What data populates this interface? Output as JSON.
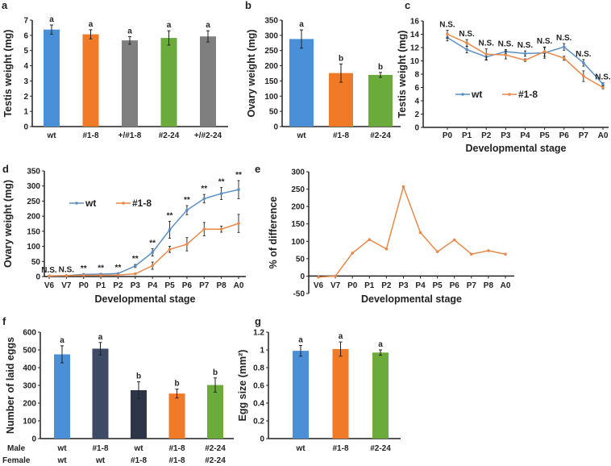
{
  "chart_data": [
    {
      "panel": "a",
      "type": "bar",
      "ylabel": "Testis weight (mg)",
      "ylim": [
        0,
        7
      ],
      "yticks": [
        0,
        1,
        2,
        3,
        4,
        5,
        6,
        7
      ],
      "categories": [
        "wt",
        "#1-8",
        "+/#1-8",
        "#2-24",
        "+/#2-24"
      ],
      "values": [
        6.38,
        6.07,
        5.67,
        5.83,
        5.93
      ],
      "errors": [
        0.3,
        0.3,
        0.25,
        0.47,
        0.37
      ],
      "letters": [
        "a",
        "a",
        "a",
        "a",
        "a"
      ],
      "colors": [
        "#4a90d9",
        "#f07a28",
        "#7f7f7f",
        "#6aab3b",
        "#7f7f7f"
      ],
      "grid": false
    },
    {
      "panel": "b",
      "type": "bar",
      "ylabel": "Ovary weight (mg)",
      "ylim": [
        0,
        350
      ],
      "yticks": [
        0,
        50,
        100,
        150,
        200,
        250,
        300,
        350
      ],
      "categories": [
        "wt",
        "#1-8",
        "#2-24"
      ],
      "values": [
        288,
        176,
        170
      ],
      "errors": [
        30,
        30,
        8
      ],
      "letters": [
        "a",
        "b",
        "b"
      ],
      "colors": [
        "#4a90d9",
        "#f07a28",
        "#6aab3b"
      ],
      "grid": false
    },
    {
      "panel": "c",
      "type": "line",
      "ylabel": "Testis weight (mg)",
      "xlabel": "Developmental stage",
      "ylim": [
        0,
        16
      ],
      "yticks": [
        0,
        2,
        4,
        6,
        8,
        10,
        12,
        14,
        16
      ],
      "categories": [
        "P0",
        "P1",
        "P2",
        "P3",
        "P4",
        "P5",
        "P6",
        "P7",
        "A0"
      ],
      "series": [
        {
          "name": "wt",
          "color": "#5b8fc4",
          "values": [
            13.5,
            11.7,
            10.6,
            11.4,
            11.1,
            11.2,
            12.1,
            9.7,
            6.5
          ],
          "errors": [
            0.5,
            0.5,
            0.5,
            0.3,
            0.4,
            0.8,
            0.5,
            0.5,
            0.2
          ]
        },
        {
          "name": "#1-8",
          "color": "#e8894a",
          "values": [
            14.0,
            12.7,
            11.0,
            10.9,
            10.1,
            11.4,
            10.4,
            7.7,
            6.0
          ],
          "errors": [
            0.6,
            0.5,
            0.8,
            0.6,
            0.2,
            0.7,
            0.3,
            0.8,
            0.2
          ]
        }
      ],
      "annotations": [
        "N.S.",
        "N.S.",
        "N.S.",
        "N.S.",
        "N.S.",
        "N.S.",
        "N.S.",
        "N.S.",
        "N.S."
      ],
      "legend": "center-left",
      "grid": false
    },
    {
      "panel": "d",
      "type": "line",
      "ylabel": "Ovary weight (mg)",
      "xlabel": "Developmental stage",
      "ylim": [
        0,
        350
      ],
      "yticks": [
        0,
        50,
        100,
        150,
        200,
        250,
        300,
        350
      ],
      "categories": [
        "V6",
        "V7",
        "P0",
        "P1",
        "P2",
        "P3",
        "P4",
        "P5",
        "P6",
        "P7",
        "P8",
        "A0"
      ],
      "series": [
        {
          "name": "wt",
          "color": "#5b8fc4",
          "values": [
            2,
            3,
            7,
            8,
            10,
            35,
            80,
            155,
            220,
            258,
            275,
            288
          ],
          "errors": [
            1,
            1,
            1,
            1,
            1,
            5,
            12,
            28,
            15,
            14,
            20,
            30
          ]
        },
        {
          "name": "#1-8",
          "color": "#e8894a",
          "values": [
            2,
            3,
            4,
            4,
            5,
            9,
            36,
            90,
            107,
            157,
            157,
            176
          ],
          "errors": [
            1,
            1,
            1,
            1,
            1,
            2,
            12,
            10,
            22,
            22,
            10,
            30
          ]
        }
      ],
      "annotations": [
        "N.S.",
        "N.S.",
        "**",
        "**",
        "**",
        "**",
        "**",
        "**",
        "**",
        "**",
        "**",
        "**"
      ],
      "legend": "top-left",
      "grid": false
    },
    {
      "panel": "e",
      "type": "line",
      "ylabel": "% of difference",
      "xlabel": "Developmental stage",
      "ylim": [
        -50,
        300
      ],
      "yticks": [
        -50,
        0,
        50,
        100,
        150,
        200,
        250,
        300
      ],
      "categories": [
        "V6",
        "V7",
        "P0",
        "P1",
        "P2",
        "P3",
        "P4",
        "P5",
        "P6",
        "P7",
        "P8",
        "A0"
      ],
      "series": [
        {
          "color": "#e8894a",
          "values": [
            -3,
            0,
            66,
            105,
            78,
            257,
            125,
            70,
            104,
            63,
            73,
            63
          ]
        }
      ],
      "grid": false
    },
    {
      "panel": "f",
      "type": "bar",
      "ylabel": "Number of laid eggs",
      "ylim": [
        0,
        600
      ],
      "yticks": [
        0,
        100,
        200,
        300,
        400,
        500,
        600
      ],
      "row_labels": [
        "Male",
        "Female"
      ],
      "categories_male": [
        "wt",
        "#1-8",
        "wt",
        "#1-8",
        "#2-24"
      ],
      "categories_female": [
        "wt",
        "wt",
        "#1-8",
        "#1-8",
        "#2-24"
      ],
      "values": [
        475,
        507,
        273,
        254,
        302
      ],
      "errors": [
        48,
        35,
        47,
        25,
        40
      ],
      "letters": [
        "a",
        "a",
        "b",
        "b",
        "b"
      ],
      "colors": [
        "#4a90d9",
        "#3d4b66",
        "#2c3647",
        "#f07a28",
        "#6aab3b"
      ],
      "grid": false
    },
    {
      "panel": "g",
      "type": "bar",
      "ylabel": "Egg size (mm²)",
      "ylim": [
        0,
        1.2
      ],
      "yticks": [
        0,
        0.2,
        0.4,
        0.6,
        0.8,
        1,
        1.2
      ],
      "categories": [
        "wt",
        "#1-8",
        "#2-24"
      ],
      "values": [
        0.99,
        1.01,
        0.97
      ],
      "errors": [
        0.06,
        0.08,
        0.03
      ],
      "letters": [
        "a",
        "a",
        "a"
      ],
      "colors": [
        "#4a90d9",
        "#f07a28",
        "#6aab3b"
      ],
      "grid": false
    }
  ]
}
